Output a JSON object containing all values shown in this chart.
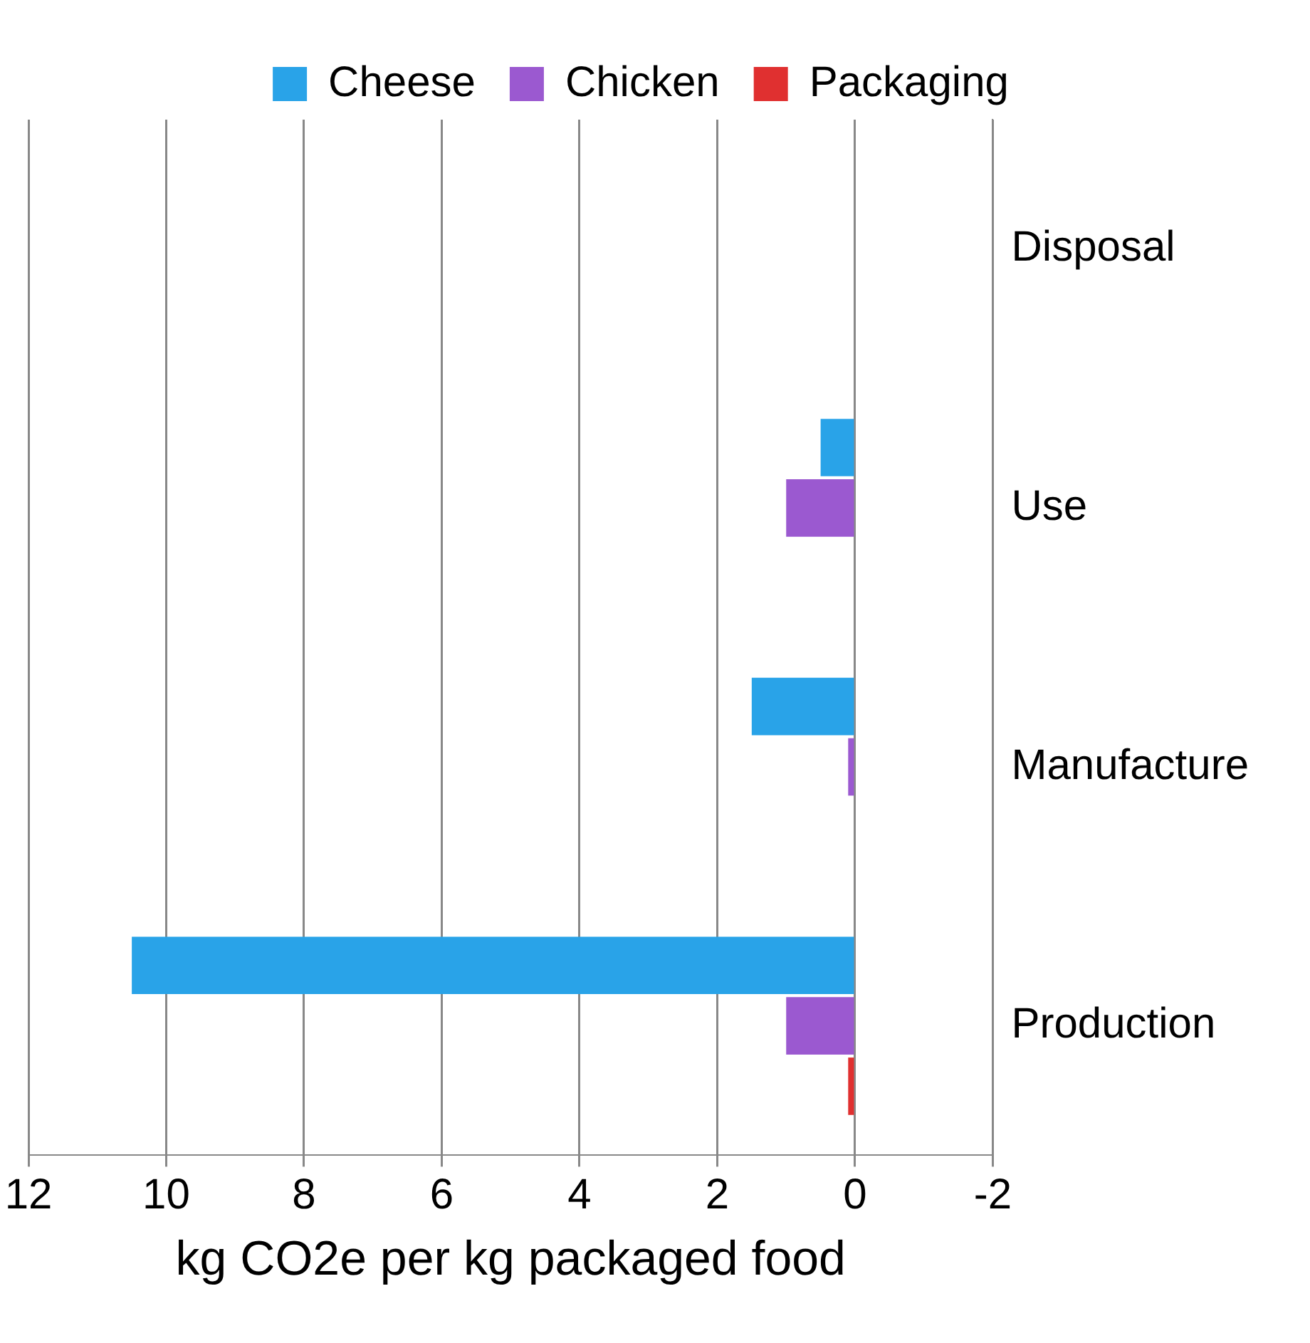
{
  "chart_data": {
    "type": "bar",
    "orientation": "horizontal",
    "xlabel": "kg CO2e per kg packaged food",
    "categories": [
      "Disposal",
      "Use",
      "Manufacture",
      "Production"
    ],
    "series": [
      {
        "name": "Cheese",
        "color": "#29a3e8",
        "values": [
          null,
          0.5,
          1.5,
          10.5
        ]
      },
      {
        "name": "Chicken",
        "color": "#9b59d0",
        "values": [
          null,
          1.0,
          0.1,
          1.0
        ]
      },
      {
        "name": "Packaging",
        "color": "#e03030",
        "values": [
          null,
          null,
          null,
          0.1
        ]
      }
    ],
    "xlim": [
      12,
      -2
    ],
    "xticks": [
      12,
      10,
      8,
      6,
      4,
      2,
      0,
      -2
    ],
    "grid": "x",
    "legend": "top"
  }
}
